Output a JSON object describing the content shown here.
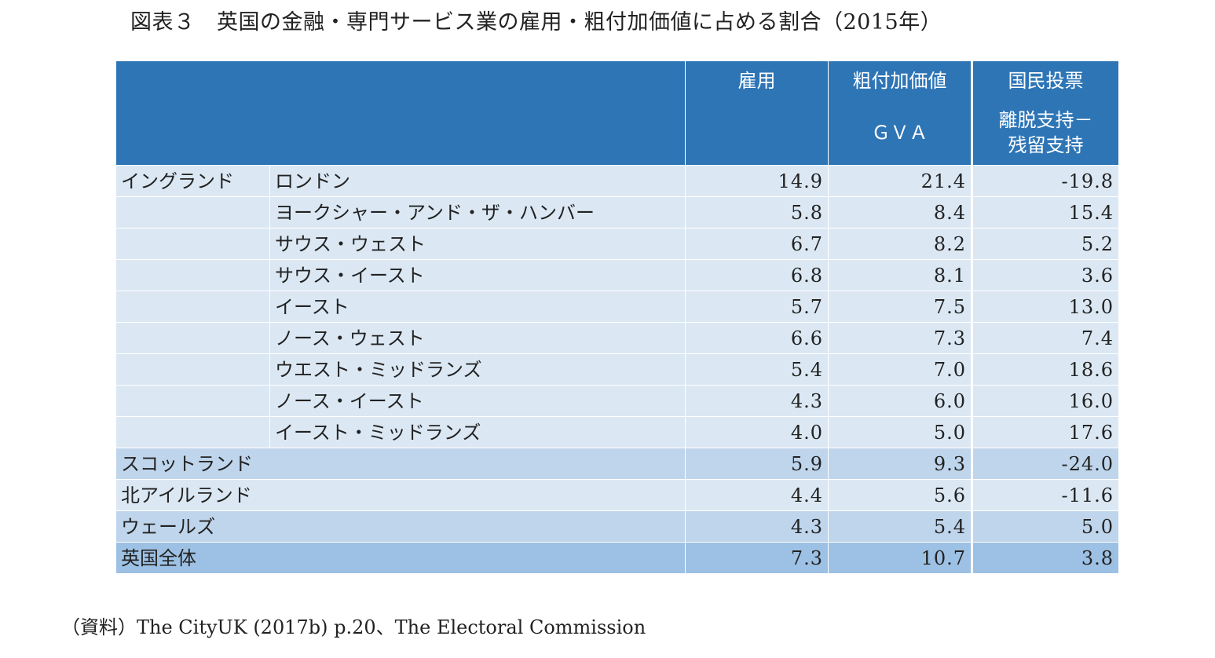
{
  "title": "図表３　英国の金融・専門サービス業の雇用・粗付加価値に占める割合（2015年）",
  "header": {
    "employment": "雇用",
    "gva_line1": "粗付加価値",
    "gva_line2": "ＧＶＡ",
    "vote_line1": "国民投票",
    "vote_line2": "離脱支持－",
    "vote_line3": "残留支持"
  },
  "england_label": "イングランド",
  "rows": [
    {
      "name": "ロンドン",
      "employment": "14.9",
      "gva": "21.4",
      "vote": "-19.8"
    },
    {
      "name": "ヨークシャー・アンド・ザ・ハンバー",
      "employment": "5.8",
      "gva": "8.4",
      "vote": "15.4"
    },
    {
      "name": "サウス・ウェスト",
      "employment": "6.7",
      "gva": "8.2",
      "vote": "5.2"
    },
    {
      "name": "サウス・イースト",
      "employment": "6.8",
      "gva": "8.1",
      "vote": "3.6"
    },
    {
      "name": "イースト",
      "employment": "5.7",
      "gva": "7.5",
      "vote": "13.0"
    },
    {
      "name": "ノース・ウェスト",
      "employment": "6.6",
      "gva": "7.3",
      "vote": "7.4"
    },
    {
      "name": "ウエスト・ミッドランズ",
      "employment": "5.4",
      "gva": "7.0",
      "vote": "18.6"
    },
    {
      "name": "ノース・イースト",
      "employment": "4.3",
      "gva": "6.0",
      "vote": "16.0"
    },
    {
      "name": "イースト・ミッドランズ",
      "employment": "4.0",
      "gva": "5.0",
      "vote": "17.6"
    },
    {
      "name": "スコットランド",
      "employment": "5.9",
      "gva": "9.3",
      "vote": "-24.0"
    },
    {
      "name": "北アイルランド",
      "employment": "4.4",
      "gva": "5.6",
      "vote": "-11.6"
    },
    {
      "name": "ウェールズ",
      "employment": "4.3",
      "gva": "5.4",
      "vote": "5.0"
    },
    {
      "name": "英国全体",
      "employment": "7.3",
      "gva": "10.7",
      "vote": "3.8"
    }
  ],
  "source_note": "（資料）The CityUK (2017b) p.20、The Electoral Commission"
}
